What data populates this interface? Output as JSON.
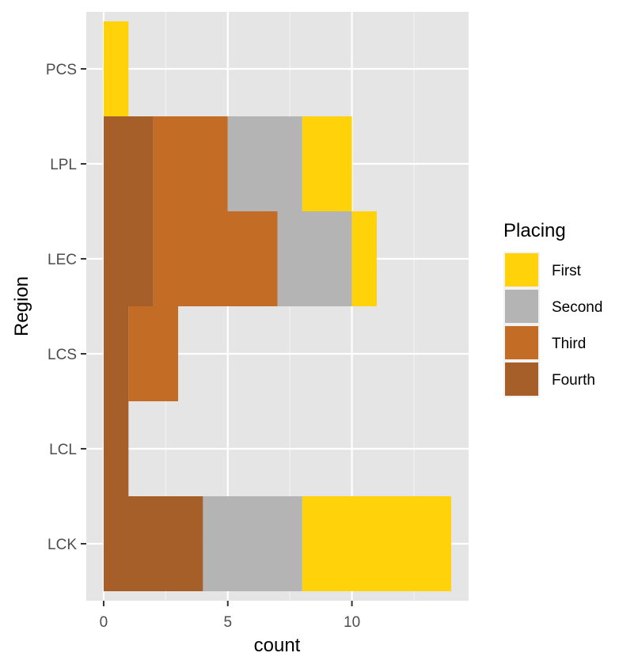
{
  "chart_data": {
    "type": "bar",
    "orientation": "horizontal",
    "stacked": true,
    "xlabel": "count",
    "ylabel": "Region",
    "xlim": [
      -0.7,
      14.7
    ],
    "x_ticks": [
      0,
      5,
      10
    ],
    "categories": [
      "PCS",
      "LPL",
      "LEC",
      "LCS",
      "LCL",
      "LCK"
    ],
    "grid": true,
    "legend": {
      "title": "Placing",
      "position": "right"
    },
    "series": [
      {
        "name": "First",
        "color": "#FFD20A",
        "values": [
          1,
          2,
          1,
          0,
          0,
          6
        ]
      },
      {
        "name": "Second",
        "color": "#B4B4B4",
        "values": [
          0,
          3,
          3,
          0,
          0,
          4
        ]
      },
      {
        "name": "Third",
        "color": "#C26C26",
        "values": [
          0,
          3,
          5,
          2,
          0,
          0
        ]
      },
      {
        "name": "Fourth",
        "color": "#A65F28",
        "values": [
          0,
          2,
          2,
          1,
          1,
          4
        ]
      }
    ],
    "stack_order": [
      "Fourth",
      "Third",
      "Second",
      "First"
    ]
  },
  "colors": {
    "panel_background": "#E5E5E5",
    "grid_major": "#FFFFFF",
    "tick_color": "#333333"
  }
}
